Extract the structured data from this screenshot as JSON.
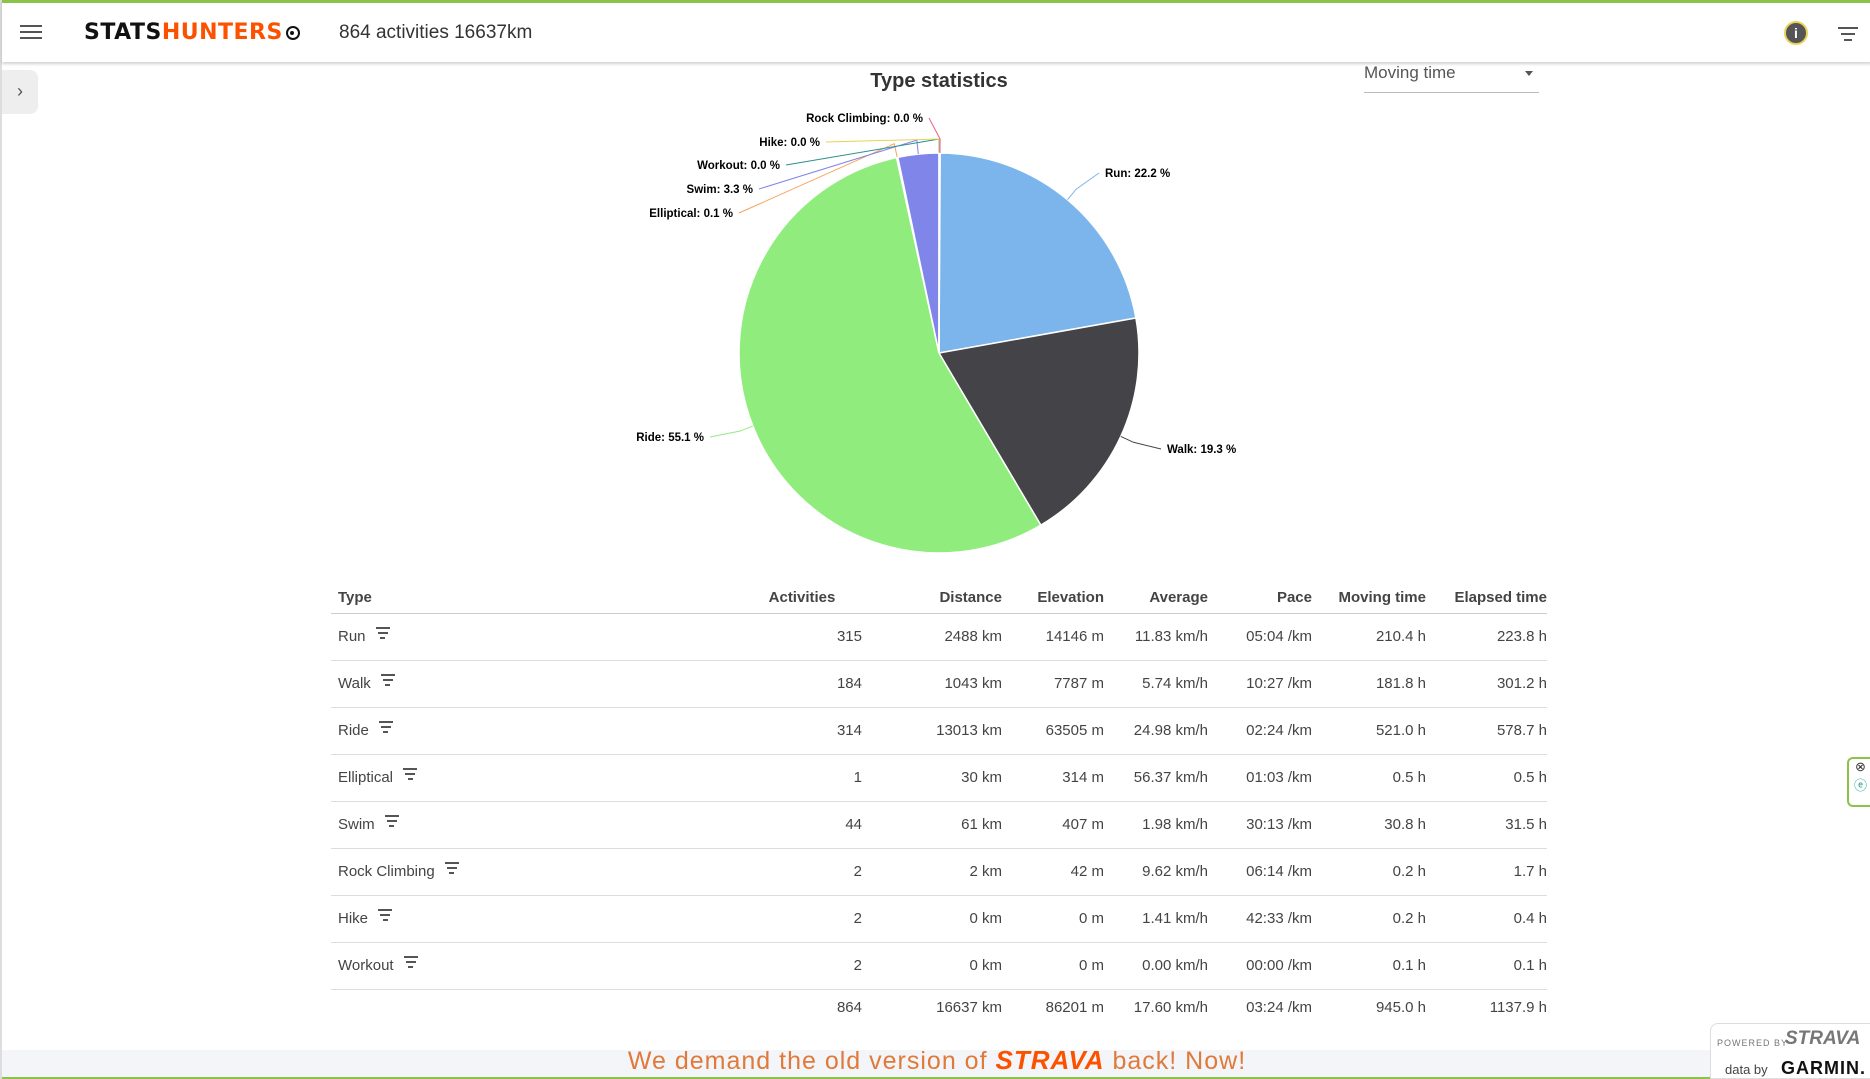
{
  "header": {
    "logo_part1": "STATS",
    "logo_part2": "HUNTERS",
    "summary": "864 activities 16637km",
    "info_label": "i"
  },
  "sidebar_toggle": "›",
  "chart_title": "Type statistics",
  "metric_select": {
    "value": "Moving time"
  },
  "chart_data": {
    "type": "pie",
    "title": "Type statistics",
    "metric": "Moving time",
    "slices": [
      {
        "name": "Run",
        "value": 22.2,
        "label": "Run: 22.2 %",
        "color": "#7cb5ec"
      },
      {
        "name": "Walk",
        "value": 19.3,
        "label": "Walk: 19.3 %",
        "color": "#434348"
      },
      {
        "name": "Ride",
        "value": 55.1,
        "label": "Ride: 55.1 %",
        "color": "#90ed7d"
      },
      {
        "name": "Elliptical",
        "value": 0.1,
        "label": "Elliptical: 0.1 %",
        "color": "#f7a35c"
      },
      {
        "name": "Swim",
        "value": 3.3,
        "label": "Swim: 3.3 %",
        "color": "#8085e9"
      },
      {
        "name": "Workout",
        "value": 0.0,
        "label": "Workout: 0.0 %",
        "color": "#2b908f"
      },
      {
        "name": "Hike",
        "value": 0.0,
        "label": "Hike: 0.0 %",
        "color": "#e4d354"
      },
      {
        "name": "Rock Climbing",
        "value": 0.0,
        "label": "Rock Climbing: 0.0 %",
        "color": "#f15c80"
      }
    ]
  },
  "table": {
    "headers": [
      "Type",
      "Activities",
      "Distance",
      "Elevation",
      "Average",
      "Pace",
      "Moving time",
      "Elapsed time"
    ],
    "rows": [
      [
        "Run",
        "315",
        "2488 km",
        "14146 m",
        "11.83 km/h",
        "05:04 /km",
        "210.4 h",
        "223.8 h"
      ],
      [
        "Walk",
        "184",
        "1043 km",
        "7787 m",
        "5.74 km/h",
        "10:27 /km",
        "181.8 h",
        "301.2 h"
      ],
      [
        "Ride",
        "314",
        "13013 km",
        "63505 m",
        "24.98 km/h",
        "02:24 /km",
        "521.0 h",
        "578.7 h"
      ],
      [
        "Elliptical",
        "1",
        "30 km",
        "314 m",
        "56.37 km/h",
        "01:03 /km",
        "0.5 h",
        "0.5 h"
      ],
      [
        "Swim",
        "44",
        "61 km",
        "407 m",
        "1.98 km/h",
        "30:13 /km",
        "30.8 h",
        "31.5 h"
      ],
      [
        "Rock Climbing",
        "2",
        "2 km",
        "42 m",
        "9.62 km/h",
        "06:14 /km",
        "0.2 h",
        "1.7 h"
      ],
      [
        "Hike",
        "2",
        "0 km",
        "0 m",
        "1.41 km/h",
        "42:33 /km",
        "0.2 h",
        "0.4 h"
      ],
      [
        "Workout",
        "2",
        "0 km",
        "0 m",
        "0.00 km/h",
        "00:00 /km",
        "0.1 h",
        "0.1 h"
      ]
    ],
    "total": [
      "",
      "864",
      "16637 km",
      "86201 m",
      "17.60 km/h",
      "03:24 /km",
      "945.0 h",
      "1137.9 h"
    ]
  },
  "banner": {
    "pre": "We demand the old version of ",
    "brand": "STRAVA",
    "post": " back! Now!"
  },
  "badge": {
    "powered": "POWERED BY",
    "strava": "STRAVA",
    "data_by": "data by",
    "garmin": "GARMIN."
  }
}
